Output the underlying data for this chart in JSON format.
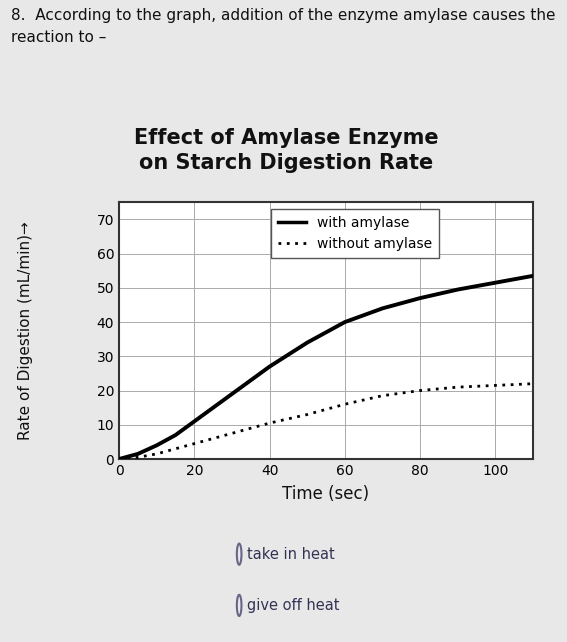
{
  "title_line1": "Effect of Amylase Enzyme",
  "title_line2": "on Starch Digestion Rate",
  "xlabel": "Time (sec)",
  "ylabel": "Rate of Digestion (mL/min)",
  "xlim": [
    0,
    110
  ],
  "ylim": [
    0,
    75
  ],
  "xticks": [
    0,
    20,
    40,
    60,
    80,
    100
  ],
  "yticks": [
    0,
    10,
    20,
    30,
    40,
    50,
    60,
    70
  ],
  "with_amylase_x": [
    0,
    5,
    10,
    15,
    20,
    25,
    30,
    35,
    40,
    50,
    60,
    70,
    80,
    90,
    100,
    110
  ],
  "with_amylase_y": [
    0,
    1.5,
    4,
    7,
    11,
    15,
    19,
    23,
    27,
    34,
    40,
    44,
    47,
    49.5,
    51.5,
    53.5
  ],
  "without_amylase_x": [
    0,
    5,
    10,
    15,
    20,
    25,
    30,
    35,
    40,
    50,
    60,
    70,
    80,
    90,
    100,
    110
  ],
  "without_amylase_y": [
    0,
    0.5,
    1.5,
    3,
    4.5,
    6,
    7.5,
    9,
    10.5,
    13,
    16,
    18.5,
    20,
    21,
    21.5,
    22
  ],
  "line_color_with": "#000000",
  "line_color_without": "#000000",
  "legend_with": "with amylase",
  "legend_without": "without amylase",
  "grid_color": "#aaaaaa",
  "plot_bg": "#ffffff",
  "outer_bg": "#f0cfc4",
  "page_bg": "#e8e8e8",
  "question_text": "8.  According to the graph, addition of the enzyme amylase causes the\nreaction to –",
  "option1": "take in heat",
  "option2": "give off heat",
  "title_fontsize": 15,
  "axis_label_fontsize": 11,
  "tick_fontsize": 10,
  "legend_fontsize": 10,
  "question_fontsize": 11,
  "option_fontsize": 10.5
}
